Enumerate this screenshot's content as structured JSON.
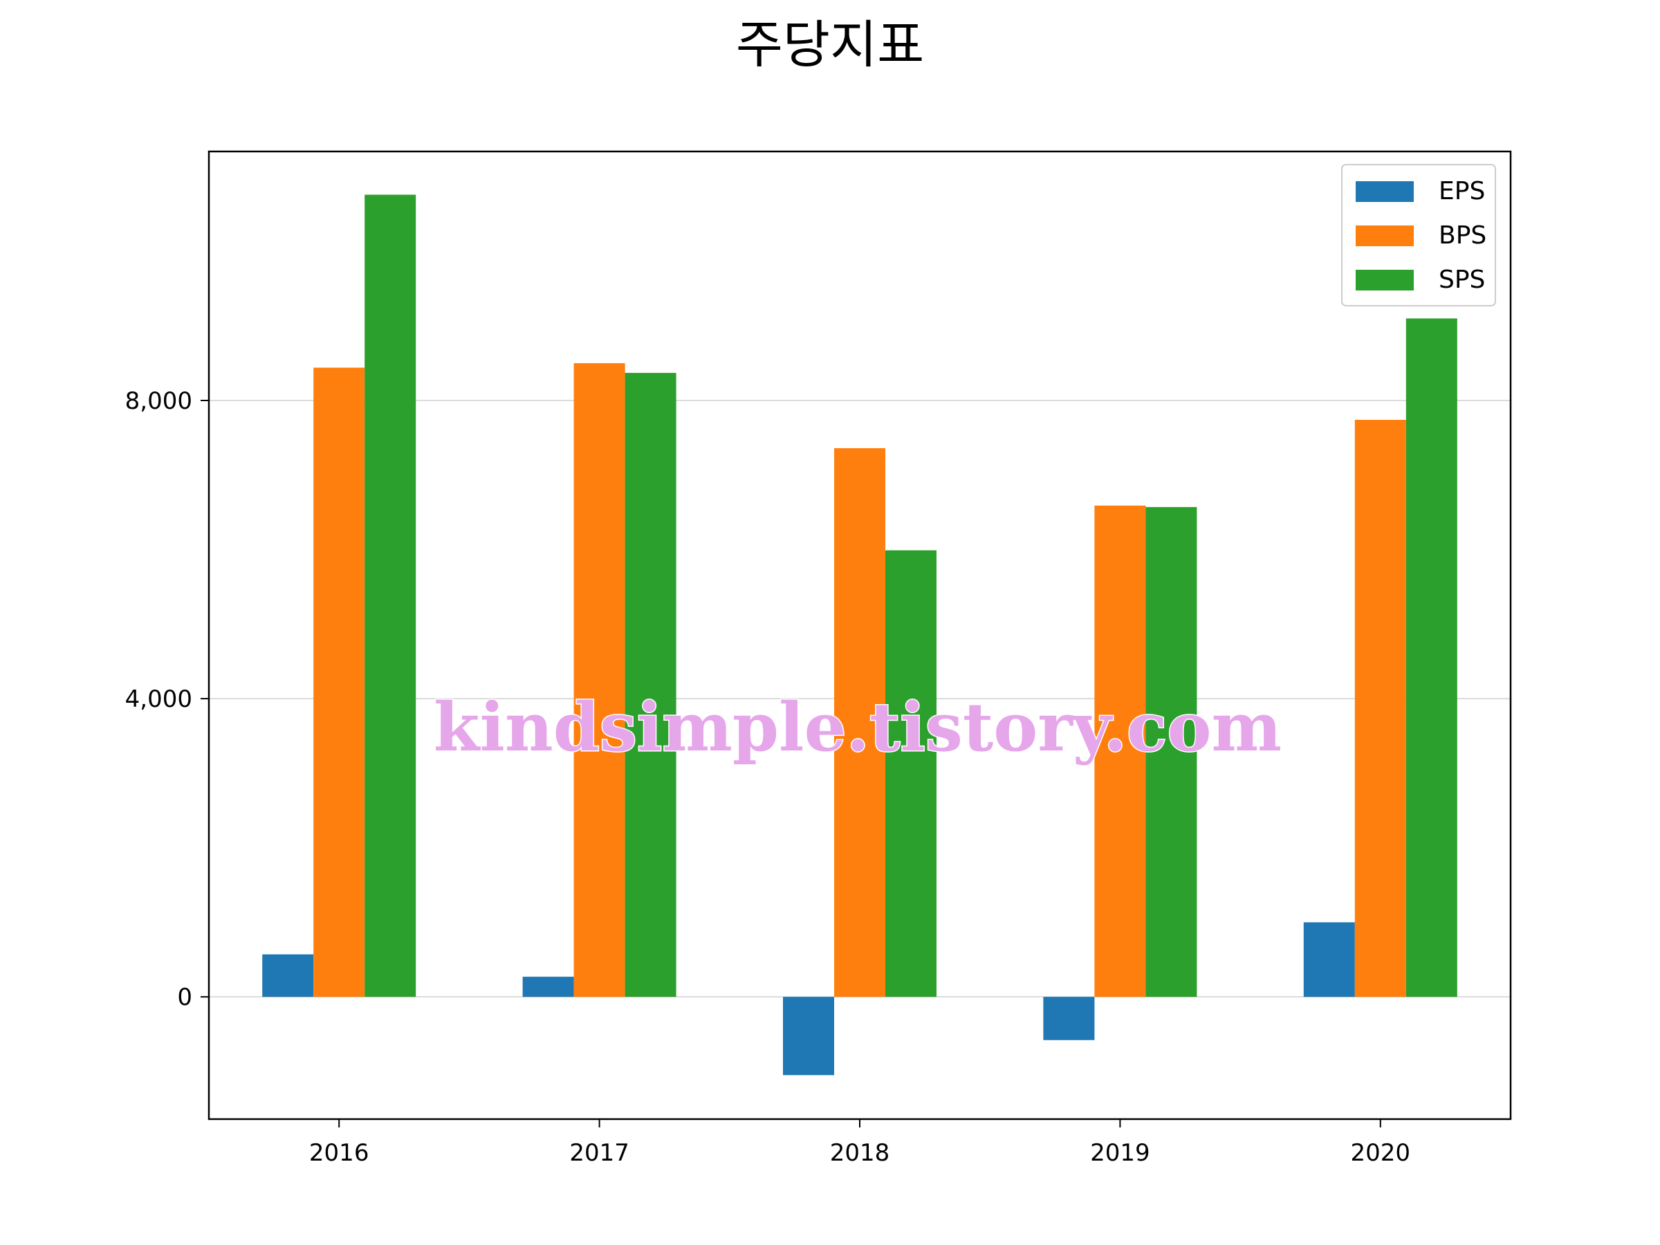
{
  "chart_data": {
    "type": "bar",
    "title": "주당지표",
    "xlabel": "",
    "ylabel": "",
    "categories": [
      "2016",
      "2017",
      "2018",
      "2019",
      "2020"
    ],
    "series": [
      {
        "name": "EPS",
        "color": "#1f77b4",
        "values": [
          570,
          270,
          -1050,
          -580,
          1000
        ]
      },
      {
        "name": "BPS",
        "color": "#ff7f0e",
        "values": [
          8440,
          8500,
          7360,
          6590,
          7740
        ]
      },
      {
        "name": "SPS",
        "color": "#2ca02c",
        "values": [
          10760,
          8370,
          5990,
          6570,
          9100
        ]
      }
    ],
    "ylim": [
      -1640,
      11340
    ],
    "yticks": [
      0,
      4000,
      8000
    ],
    "ytick_labels": [
      "0",
      "4,000",
      "8,000"
    ],
    "grid": "horizontal",
    "legend_position": "top-right",
    "watermark": "kindsimple.tistory.com"
  }
}
